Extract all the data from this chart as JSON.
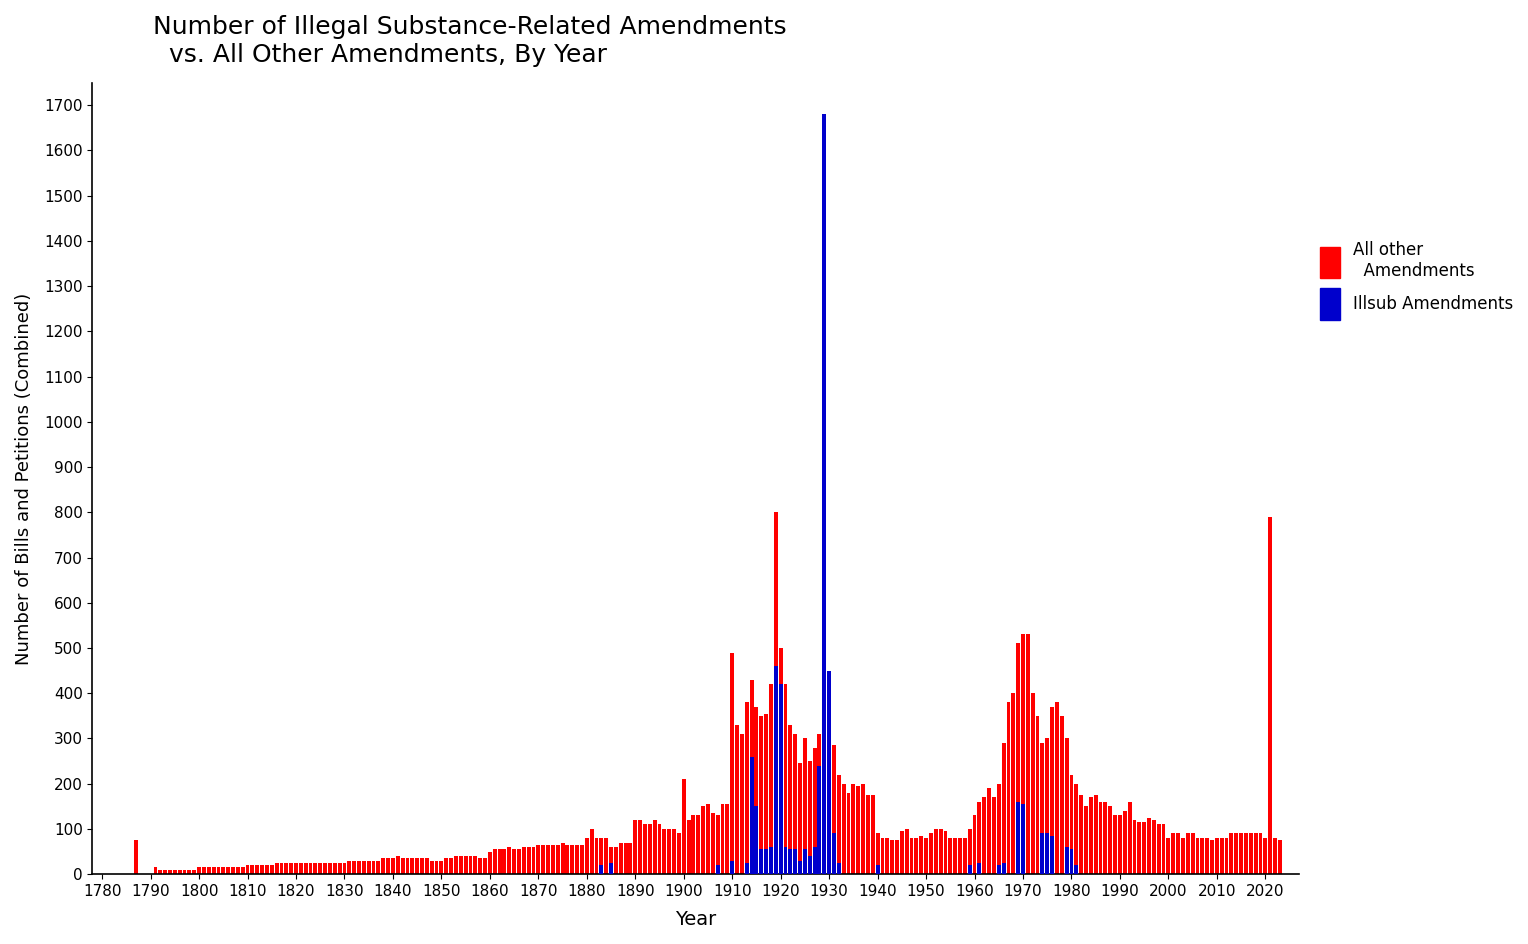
{
  "title": "Number of Illegal Substance-Related Amendments\n  vs. All Other Amendments, By Year",
  "xlabel": "Year",
  "ylabel": "Number of Bills and Petitions (Combined)",
  "legend_labels": [
    "All other\n  Amendments",
    "Illsub Amendments"
  ],
  "legend_colors": [
    "#ff0000",
    "#0000cc"
  ],
  "background_color": "#ffffff",
  "ylim": [
    0,
    1750
  ],
  "yticks": [
    0,
    100,
    200,
    300,
    400,
    500,
    600,
    700,
    800,
    900,
    1000,
    1100,
    1200,
    1300,
    1400,
    1500,
    1600,
    1700
  ],
  "xticks": [
    1780,
    1790,
    1800,
    1810,
    1820,
    1830,
    1840,
    1850,
    1860,
    1870,
    1880,
    1890,
    1900,
    1910,
    1920,
    1930,
    1940,
    1950,
    1960,
    1970,
    1980,
    1990,
    2000,
    2010,
    2020
  ],
  "other_data": {
    "1787": 75,
    "1791": 15,
    "1792": 10,
    "1793": 10,
    "1794": 10,
    "1795": 10,
    "1796": 10,
    "1797": 10,
    "1798": 10,
    "1799": 10,
    "1800": 15,
    "1801": 15,
    "1802": 15,
    "1803": 15,
    "1804": 15,
    "1805": 15,
    "1806": 15,
    "1807": 15,
    "1808": 15,
    "1809": 15,
    "1810": 20,
    "1811": 20,
    "1812": 20,
    "1813": 20,
    "1814": 20,
    "1815": 20,
    "1816": 25,
    "1817": 25,
    "1818": 25,
    "1819": 25,
    "1820": 25,
    "1821": 25,
    "1822": 25,
    "1823": 25,
    "1824": 25,
    "1825": 25,
    "1826": 25,
    "1827": 25,
    "1828": 25,
    "1829": 25,
    "1830": 25,
    "1831": 30,
    "1832": 30,
    "1833": 30,
    "1834": 30,
    "1835": 30,
    "1836": 30,
    "1837": 30,
    "1838": 35,
    "1839": 35,
    "1840": 35,
    "1841": 40,
    "1842": 35,
    "1843": 35,
    "1844": 35,
    "1845": 35,
    "1846": 35,
    "1847": 35,
    "1848": 30,
    "1849": 30,
    "1850": 30,
    "1851": 35,
    "1852": 35,
    "1853": 40,
    "1854": 40,
    "1855": 40,
    "1856": 40,
    "1857": 40,
    "1858": 35,
    "1859": 35,
    "1860": 50,
    "1861": 55,
    "1862": 55,
    "1863": 55,
    "1864": 60,
    "1865": 55,
    "1866": 55,
    "1867": 60,
    "1868": 60,
    "1869": 60,
    "1870": 65,
    "1871": 65,
    "1872": 65,
    "1873": 65,
    "1874": 65,
    "1875": 70,
    "1876": 65,
    "1877": 65,
    "1878": 65,
    "1879": 65,
    "1880": 80,
    "1881": 100,
    "1882": 80,
    "1883": 80,
    "1884": 80,
    "1885": 60,
    "1886": 60,
    "1887": 70,
    "1888": 70,
    "1889": 70,
    "1890": 120,
    "1891": 120,
    "1892": 110,
    "1893": 110,
    "1894": 120,
    "1895": 110,
    "1896": 100,
    "1897": 100,
    "1898": 100,
    "1899": 90,
    "1900": 210,
    "1901": 120,
    "1902": 130,
    "1903": 130,
    "1904": 150,
    "1905": 155,
    "1906": 135,
    "1907": 130,
    "1908": 155,
    "1909": 155,
    "1910": 490,
    "1911": 330,
    "1912": 310,
    "1913": 380,
    "1914": 430,
    "1915": 370,
    "1916": 350,
    "1917": 355,
    "1918": 420,
    "1919": 800,
    "1920": 500,
    "1921": 420,
    "1922": 330,
    "1923": 310,
    "1924": 245,
    "1925": 300,
    "1926": 250,
    "1927": 280,
    "1928": 310,
    "1929": 300,
    "1930": 330,
    "1931": 285,
    "1932": 220,
    "1933": 200,
    "1934": 180,
    "1935": 200,
    "1936": 195,
    "1937": 200,
    "1938": 175,
    "1939": 175,
    "1940": 90,
    "1941": 80,
    "1942": 80,
    "1943": 75,
    "1944": 75,
    "1945": 95,
    "1946": 100,
    "1947": 80,
    "1948": 80,
    "1949": 85,
    "1950": 80,
    "1951": 90,
    "1952": 100,
    "1953": 100,
    "1954": 95,
    "1955": 80,
    "1956": 80,
    "1957": 80,
    "1958": 80,
    "1959": 100,
    "1960": 130,
    "1961": 160,
    "1962": 170,
    "1963": 190,
    "1964": 170,
    "1965": 200,
    "1966": 290,
    "1967": 380,
    "1968": 400,
    "1969": 510,
    "1970": 530,
    "1971": 530,
    "1972": 400,
    "1973": 350,
    "1974": 290,
    "1975": 300,
    "1976": 370,
    "1977": 380,
    "1978": 350,
    "1979": 300,
    "1980": 220,
    "1981": 200,
    "1982": 175,
    "1983": 150,
    "1984": 170,
    "1985": 175,
    "1986": 160,
    "1987": 160,
    "1988": 150,
    "1989": 130,
    "1990": 130,
    "1991": 140,
    "1992": 160,
    "1993": 120,
    "1994": 115,
    "1995": 115,
    "1996": 125,
    "1997": 120,
    "1998": 110,
    "1999": 110,
    "2000": 80,
    "2001": 90,
    "2002": 90,
    "2003": 80,
    "2004": 90,
    "2005": 90,
    "2006": 80,
    "2007": 80,
    "2008": 80,
    "2009": 75,
    "2010": 80,
    "2011": 80,
    "2012": 80,
    "2013": 90,
    "2014": 90,
    "2015": 90,
    "2016": 90,
    "2017": 90,
    "2018": 90,
    "2019": 90,
    "2020": 80,
    "2021": 790,
    "2022": 80,
    "2023": 75
  },
  "illsub_data": {
    "1883": 20,
    "1885": 25,
    "1907": 20,
    "1910": 30,
    "1913": 25,
    "1914": 260,
    "1915": 150,
    "1916": 55,
    "1917": 55,
    "1918": 60,
    "1919": 460,
    "1920": 420,
    "1921": 60,
    "1922": 55,
    "1923": 55,
    "1924": 30,
    "1925": 55,
    "1926": 40,
    "1927": 60,
    "1928": 240,
    "1929": 1680,
    "1930": 450,
    "1931": 90,
    "1932": 25,
    "1940": 20,
    "1959": 20,
    "1961": 25,
    "1965": 20,
    "1966": 25,
    "1969": 160,
    "1970": 155,
    "1974": 90,
    "1975": 90,
    "1976": 85,
    "1979": 60,
    "1980": 55,
    "1981": 20
  }
}
